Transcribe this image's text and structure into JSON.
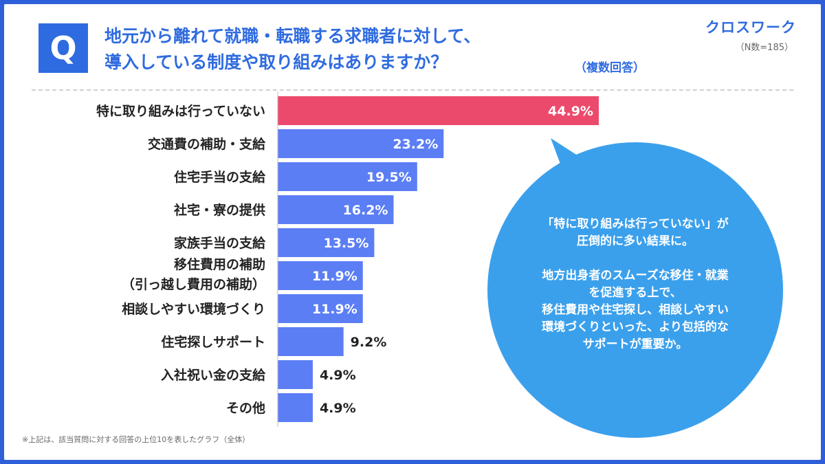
{
  "header": {
    "q_label": "Q",
    "question_lines": [
      "地元から離れて就職・転職する求職者に対して、",
      "導入している制度や取り組みはありますか？"
    ],
    "answer_type": "（複数回答）",
    "brand": "クロスワーク",
    "sample_size": "（N数=185）"
  },
  "colors": {
    "frame": "#2f5fd8",
    "accent": "#2f6be0",
    "highlight_bar": "#ec4a6c",
    "bar": "#5b7ef5",
    "bubble": "#3ba0ec"
  },
  "chart_data": {
    "type": "bar",
    "orientation": "horizontal",
    "categories": [
      "特に取り組みは行っていない",
      "交通費の補助・支給",
      "住宅手当の支給",
      "社宅・寮の提供",
      "家族手当の支給",
      "移住費用の補助（引っ越し費用の補助）",
      "相談しやすい環境づくり",
      "住宅探しサポート",
      "入社祝い金の支給",
      "その他"
    ],
    "category_lines": [
      [
        "特に取り組みは行っていない"
      ],
      [
        "交通費の補助・支給"
      ],
      [
        "住宅手当の支給"
      ],
      [
        "社宅・寮の提供"
      ],
      [
        "家族手当の支給"
      ],
      [
        "移住費用の補助",
        "（引っ越し費用の補助）"
      ],
      [
        "相談しやすい環境づくり"
      ],
      [
        "住宅探しサポート"
      ],
      [
        "入社祝い金の支給"
      ],
      [
        "その他"
      ]
    ],
    "values": [
      44.9,
      23.2,
      19.5,
      16.2,
      13.5,
      11.9,
      11.9,
      9.2,
      4.9,
      4.9
    ],
    "value_labels": [
      "44.9%",
      "23.2%",
      "19.5%",
      "16.2%",
      "13.5%",
      "11.9%",
      "11.9%",
      "9.2%",
      "4.9%",
      "4.9%"
    ],
    "unit": "%",
    "highlight_index": 0
  },
  "callout": {
    "lines_1": [
      "「特に取り組みは行っていない」が",
      "圧倒的に多い結果に。"
    ],
    "lines_2": [
      "地方出身者のスムーズな移住・就業",
      "を促進する上で、",
      "移住費用や住宅探し、相談しやすい",
      "環境づくりといった、より包括的な",
      "サポートが重要か。"
    ]
  },
  "footnote": "※上記は、該当質問に対する回答の上位10を表したグラフ（全体）"
}
